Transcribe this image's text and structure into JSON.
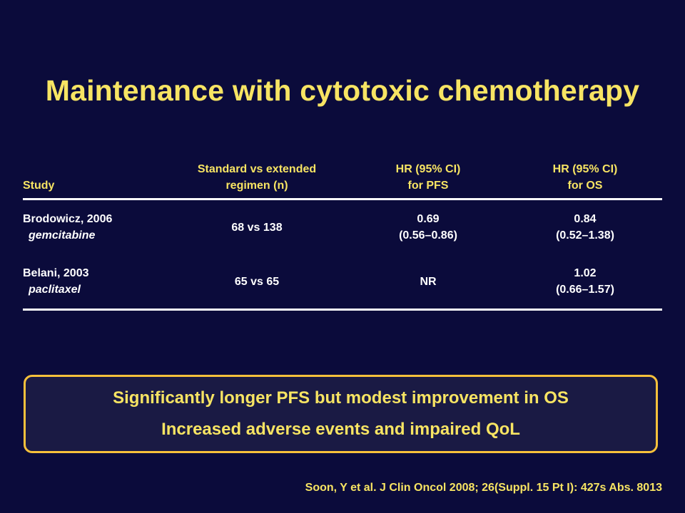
{
  "title": "Maintenance with cytotoxic chemotherapy",
  "table": {
    "headers": [
      {
        "line1": "",
        "line2": "Study"
      },
      {
        "line1": "Standard vs extended",
        "line2": "regimen (n)"
      },
      {
        "line1": "HR (95% CI)",
        "line2": "for PFS"
      },
      {
        "line1": "HR (95% CI)",
        "line2": "for OS"
      }
    ],
    "rows": [
      {
        "study": "Brodowicz, 2006",
        "drug": "gemcitabine",
        "regimen": "68 vs 138",
        "pfs_hr": "0.69",
        "pfs_ci": "(0.56–0.86)",
        "os_hr": "0.84",
        "os_ci": "(0.52–1.38)"
      },
      {
        "study": "Belani, 2003",
        "drug": "paclitaxel",
        "regimen": "65 vs 65",
        "pfs_hr": "NR",
        "pfs_ci": "",
        "os_hr": "1.02",
        "os_ci": "(0.66–1.57)"
      }
    ]
  },
  "summary": {
    "line1": "Significantly longer PFS but modest improvement in OS",
    "line2": "Increased adverse events and impaired QoL"
  },
  "reference": "Soon, Y et al. J Clin Oncol 2008; 26(Suppl. 15 Pt I): 427s Abs. 8013",
  "colors": {
    "background": "#0b0b3b",
    "accent_text": "#f7e463",
    "box_border": "#f7c13b"
  }
}
